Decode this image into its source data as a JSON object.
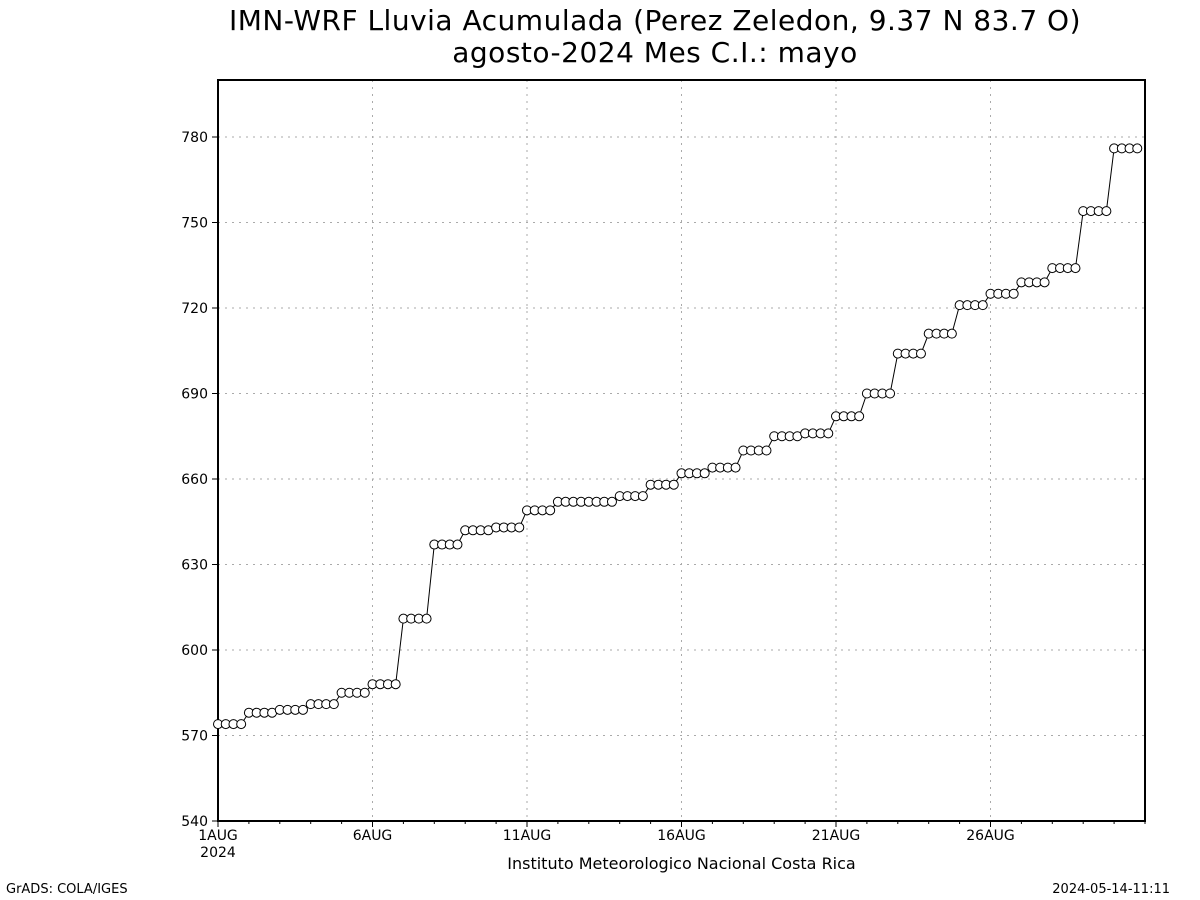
{
  "header": {
    "title_line1": "IMN-WRF  Lluvia Acumulada  (Perez Zeledon, 9.37  N 83.7  O)",
    "title_line2": "agosto-2024 Mes C.I.: mayo"
  },
  "footer": {
    "caption": "Instituto Meteorologico Nacional Costa Rica",
    "left_credit": "GrADS: COLA/IGES",
    "right_timestamp": "2024-05-14-11:11"
  },
  "chart_data": {
    "type": "line",
    "title": "IMN-WRF  Lluvia Acumulada  (Perez Zeledon, 9.37  N 83.7  O)",
    "subtitle": "agosto-2024 Mes C.I.: mayo",
    "xlabel": "",
    "ylabel": "",
    "ylim": [
      540,
      800
    ],
    "xlim": [
      1,
      31
    ],
    "yticks": [
      540,
      570,
      600,
      630,
      660,
      690,
      720,
      750,
      780
    ],
    "xticks": [
      {
        "day": 1,
        "label": "1AUG",
        "sublabel": "2024"
      },
      {
        "day": 6,
        "label": "6AUG"
      },
      {
        "day": 11,
        "label": "11AUG"
      },
      {
        "day": 16,
        "label": "16AUG"
      },
      {
        "day": 21,
        "label": "21AUG"
      },
      {
        "day": 26,
        "label": "26AUG"
      }
    ],
    "grid": true,
    "marker": "open-circle",
    "line_color": "#000000",
    "steps_per_day": 4,
    "start_day": 1,
    "series": [
      {
        "values": [
          574,
          574,
          574,
          574,
          578,
          578,
          578,
          578,
          579,
          579,
          579,
          579,
          581,
          581,
          581,
          581,
          585,
          585,
          585,
          585,
          588,
          588,
          588,
          588,
          611,
          611,
          611,
          611,
          637,
          637,
          637,
          637,
          642,
          642,
          642,
          642,
          643,
          643,
          643,
          643,
          649,
          649,
          649,
          649,
          652,
          652,
          652,
          652,
          652,
          652,
          652,
          652,
          654,
          654,
          654,
          654,
          658,
          658,
          658,
          658,
          662,
          662,
          662,
          662,
          664,
          664,
          664,
          664,
          670,
          670,
          670,
          670,
          675,
          675,
          675,
          675,
          676,
          676,
          676,
          676,
          682,
          682,
          682,
          682,
          690,
          690,
          690,
          690,
          704,
          704,
          704,
          704,
          711,
          711,
          711,
          711,
          721,
          721,
          721,
          721,
          725,
          725,
          725,
          725,
          729,
          729,
          729,
          729,
          734,
          734,
          734,
          734,
          754,
          754,
          754,
          754,
          776,
          776,
          776,
          776
        ]
      }
    ]
  }
}
